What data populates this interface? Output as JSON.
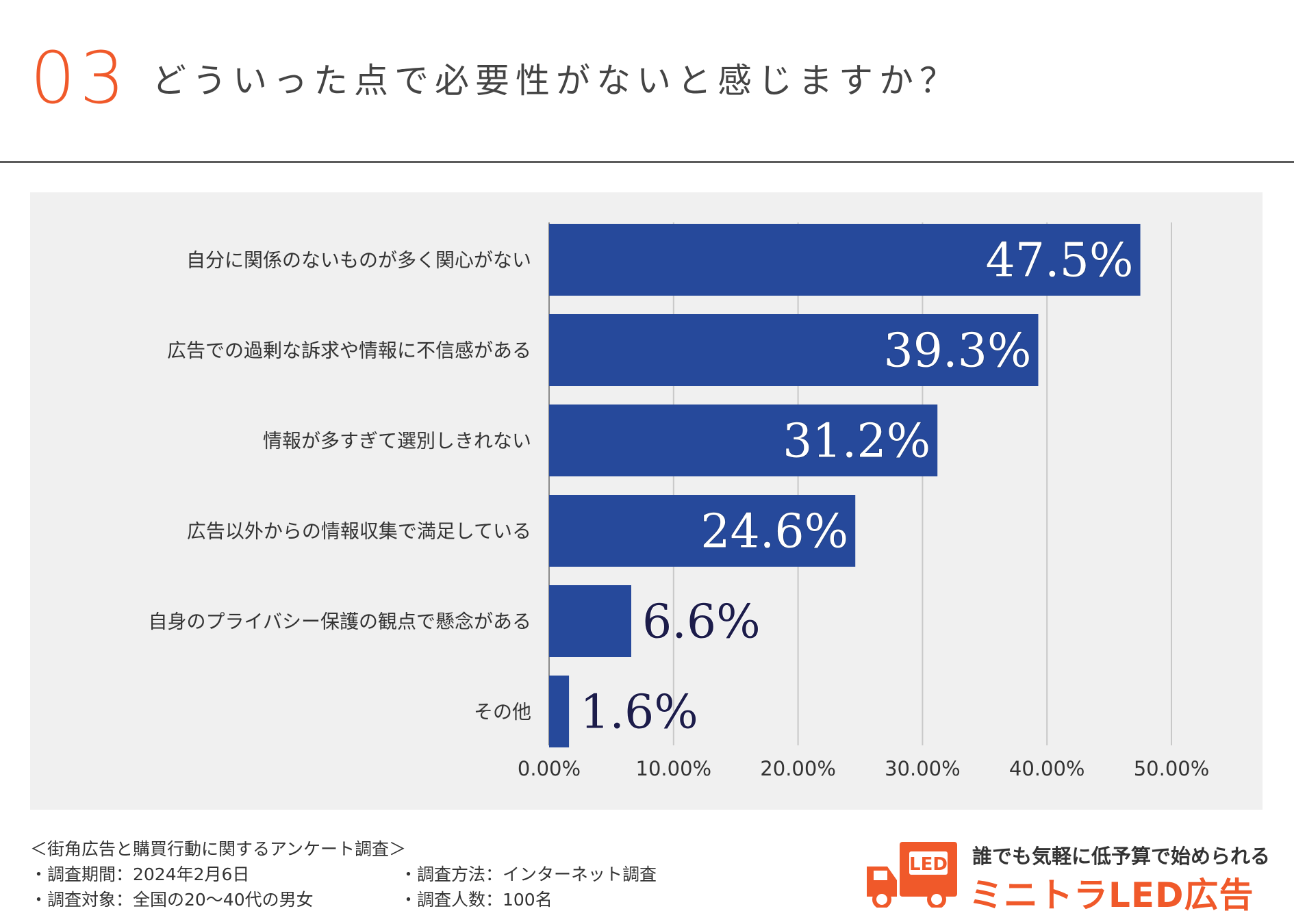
{
  "header": {
    "number": "03",
    "title": "どういった点で必要性がないと感じますか？"
  },
  "colors": {
    "accent": "#f0592a",
    "bar": "#26499b",
    "panel": "#f0f0f0",
    "grid": "#c8c8c8",
    "value_label_outside": "#1c1c4a"
  },
  "chart_data": {
    "type": "bar",
    "orientation": "horizontal",
    "title": "どういった点で必要性がないと感じますか？",
    "xlabel": "",
    "ylabel": "",
    "xlim": [
      0,
      50
    ],
    "grid": true,
    "categories": [
      "自分に関係のないものが多く関心がない",
      "広告での過剰な訴求や情報に不信感がある",
      "情報が多すぎて選別しきれない",
      "広告以外からの情報収集で満足している",
      "自身のプライバシー保護の観点で懸念がある",
      "その他"
    ],
    "values": [
      47.5,
      39.3,
      31.2,
      24.6,
      6.6,
      1.6
    ],
    "value_labels": [
      "47.5%",
      "39.3%",
      "31.2%",
      "24.6%",
      "6.6%",
      "1.6%"
    ],
    "ticks": [
      0,
      10,
      20,
      30,
      40,
      50
    ],
    "tick_labels": [
      "0.00%",
      "10.00%",
      "20.00%",
      "30.00%",
      "40.00%",
      "50.00%"
    ]
  },
  "survey": {
    "title": "＜街角広告と購買行動に関するアンケート調査＞",
    "period": "・調査期間：2024年2月6日",
    "method": "・調査方法：インターネット調査",
    "target": "・調査対象：全国の20〜40代の男女",
    "count": "・調査人数：100名"
  },
  "logo": {
    "tagline": "誰でも気軽に低予算で始められる",
    "name": "ミニトラLED広告",
    "truck_badge": "LED"
  }
}
